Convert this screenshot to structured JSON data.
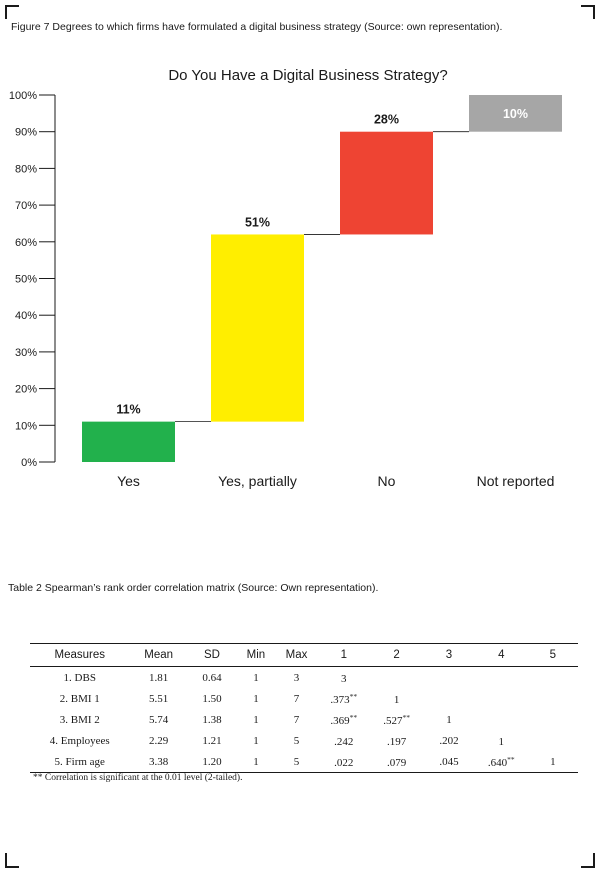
{
  "figure": {
    "caption": "Figure 7 Degrees to which firms have formulated a digital business strategy (Source: own representation)."
  },
  "chart_data": {
    "type": "bar",
    "subtype": "waterfall",
    "title": "Do You Have a Digital Business Strategy?",
    "categories": [
      "Yes",
      "Yes, partially",
      "No",
      "Not reported"
    ],
    "values": [
      11,
      51,
      28,
      10
    ],
    "labels": [
      "11%",
      "51%",
      "28%",
      "10%"
    ],
    "colors": [
      "#22b14c",
      "#ffee00",
      "#ee4433",
      "#a6a6a6"
    ],
    "label_colors": [
      "#1a1a1a",
      "#1a1a1a",
      "#1a1a1a",
      "#ffffff"
    ],
    "ylim": [
      0,
      100
    ],
    "yticks": [
      "0%",
      "10%",
      "20%",
      "30%",
      "40%",
      "50%",
      "60%",
      "70%",
      "80%",
      "90%",
      "100%"
    ],
    "xlabel": "",
    "ylabel": "",
    "grid": false,
    "legend": "none"
  },
  "table": {
    "caption": "Table 2 Spearman’s rank order correlation matrix (Source: Own representation).",
    "headers": [
      "Measures",
      "Mean",
      "SD",
      "Min",
      "Max",
      "1",
      "2",
      "3",
      "4",
      "5"
    ],
    "rows": [
      {
        "measure": "1. DBS",
        "mean": "1.81",
        "sd": "0.64",
        "min": "1",
        "max": "3",
        "c1": "3",
        "c1s": "",
        "c2": "",
        "c2s": "",
        "c3": "",
        "c4": "",
        "c4s": "",
        "c5": ""
      },
      {
        "measure": "2. BMI 1",
        "mean": "5.51",
        "sd": "1.50",
        "min": "1",
        "max": "7",
        "c1": ".373",
        "c1s": "**",
        "c2": "1",
        "c2s": "",
        "c3": "",
        "c4": "",
        "c4s": "",
        "c5": ""
      },
      {
        "measure": "3. BMI 2",
        "mean": "5.74",
        "sd": "1.38",
        "min": "1",
        "max": "7",
        "c1": ".369",
        "c1s": "**",
        "c2": ".527",
        "c2s": "**",
        "c3": "1",
        "c4": "",
        "c4s": "",
        "c5": ""
      },
      {
        "measure": "4. Employees",
        "mean": "2.29",
        "sd": "1.21",
        "min": "1",
        "max": "5",
        "c1": ".242",
        "c1s": "",
        "c2": ".197",
        "c2s": "",
        "c3": ".202",
        "c4": "1",
        "c4s": "",
        "c5": ""
      },
      {
        "measure": "5. Firm age",
        "mean": "3.38",
        "sd": "1.20",
        "min": "1",
        "max": "5",
        "c1": ".022",
        "c1s": "",
        "c2": ".079",
        "c2s": "",
        "c3": ".045",
        "c4": ".640",
        "c4s": "**",
        "c5": "1"
      }
    ],
    "note": "** Correlation is significant at the 0.01 level (2-tailed)."
  }
}
